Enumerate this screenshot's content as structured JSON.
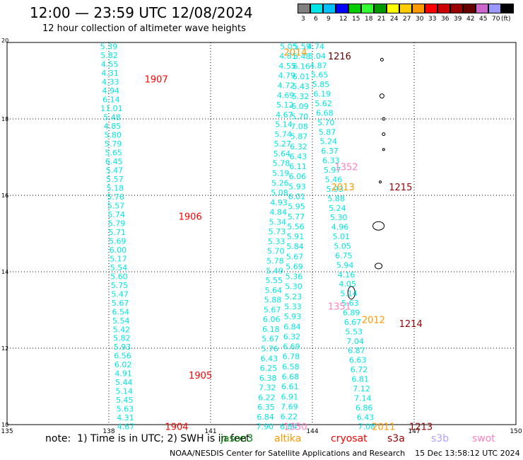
{
  "title": "12:00 — 23:59 UTC 12/08/2024",
  "subtitle": "12 hour collection of altimeter wave heights",
  "legend": {
    "colors": [
      "#808080",
      "#00e5e5",
      "#00bfff",
      "#0000ff",
      "#00cc00",
      "#33ff33",
      "#009900",
      "#ffff00",
      "#ffcc00",
      "#ff9900",
      "#ff0000",
      "#cc0000",
      "#990000",
      "#660000",
      "#cc66cc",
      "#9999ff",
      "#000000"
    ],
    "labels": [
      "3",
      "6",
      "9",
      "12",
      "15",
      "18",
      "21",
      "24",
      "27",
      "30",
      "33",
      "36",
      "39",
      "42",
      "45",
      "70",
      "(ft)"
    ]
  },
  "map_axes": {
    "lon_ticks": [
      "135",
      "138",
      "141",
      "144",
      "147",
      "150"
    ],
    "lat_ticks": [
      "20",
      "18",
      "16",
      "14",
      "12",
      "10"
    ],
    "lon_range": [
      135,
      150
    ],
    "lat_range": [
      10,
      20
    ]
  },
  "tracks": [
    {
      "satellite": "jason3",
      "color": "#00e5e5",
      "lon_start": 138.0,
      "lon_end": 138.5,
      "values": [
        "5.39",
        "5.82",
        "4.55",
        "4.31",
        "4.33",
        "4.94",
        "6.14",
        "11.01",
        "5.48",
        "4.85",
        "5.80",
        "5.79",
        "5.65",
        "6.45",
        "5.47",
        "5.57",
        "5.18",
        "5.76",
        "5.57",
        "5.74",
        "5.79",
        "5.71",
        "5.69",
        "6.00",
        "5.17",
        "5.54",
        "5.60",
        "5.75",
        "5.47",
        "5.67",
        "6.54",
        "5.54",
        "5.42",
        "5.82",
        "5.93",
        "6.56",
        "6.02",
        "4.91",
        "5.44",
        "5.14",
        "5.45",
        "5.63",
        "4.31",
        "4.67"
      ]
    },
    {
      "satellite": "jason3",
      "color": "#00e5e5",
      "lon_start": 143.3,
      "lon_end": 142.6,
      "values": [
        "5.05",
        "4.81",
        "4.55",
        "4.79",
        "4.72",
        "4.69",
        "5.12",
        "4.67",
        "5.14",
        "5.74",
        "5.27",
        "5.64",
        "5.78",
        "5.19",
        "5.26",
        "5.08",
        "4.93",
        "4.84",
        "5.34",
        "5.73",
        "5.33",
        "5.70",
        "5.78",
        "5.49",
        "5.55",
        "5.64",
        "5.88",
        "5.67",
        "6.06",
        "6.18",
        "5.67",
        "5.76",
        "6.43",
        "6.25",
        "6.38",
        "7.32",
        "6.22",
        "6.35",
        "6.84",
        "7.90"
      ]
    },
    {
      "satellite": "jason3",
      "color": "#00e5e5",
      "lon_start": 143.7,
      "lon_end": 143.3,
      "values": [
        "5.59",
        "5.48",
        "6.16",
        "6.01",
        "5.43",
        "5.32",
        "6.09",
        "5.70",
        "7.08",
        "5.87",
        "6.32",
        "6.43",
        "6.11",
        "6.06",
        "5.93",
        "6.01",
        "5.95",
        "5.77",
        "5.56",
        "5.91",
        "5.84",
        "5.67",
        "5.69",
        "5.36",
        "5.30",
        "5.23",
        "5.33",
        "5.93",
        "6.84",
        "6.32",
        "6.69",
        "6.78",
        "6.58",
        "6.68",
        "6.61",
        "6.91",
        "7.69",
        "6.22",
        "6.84"
      ]
    },
    {
      "satellite": "jason3",
      "color": "#00e5e5",
      "lon_start": 144.1,
      "lon_end": 145.6,
      "values": [
        "4.74",
        "5.04",
        "4.87",
        "5.65",
        "5.85",
        "6.19",
        "5.62",
        "6.68",
        "5.70",
        "5.87",
        "5.24",
        "6.37",
        "6.33",
        "5.97",
        "5.46",
        "5.93",
        "5.88",
        "5.24",
        "5.30",
        "4.96",
        "5.01",
        "5.05",
        "6.75",
        "5.94",
        "4.16",
        "4.05",
        "5.14",
        "5.63",
        "6.89",
        "6.67",
        "5.53",
        "7.04",
        "6.87",
        "6.63",
        "6.72",
        "6.81",
        "7.12",
        "7.14",
        "6.86",
        "6.43",
        "7.08"
      ]
    }
  ],
  "pass_labels": [
    {
      "text": "2014",
      "color": "#ff9900",
      "lon": 143.5,
      "lat": 19.75
    },
    {
      "text": "1216",
      "color": "#660000",
      "lon": 144.8,
      "lat": 19.65
    },
    {
      "text": "1907",
      "color": "#ff0000",
      "lon": 139.4,
      "lat": 19.05
    },
    {
      "text": "1352",
      "color": "#ff80c0",
      "lon": 145.0,
      "lat": 16.75
    },
    {
      "text": "2013",
      "color": "#ff9900",
      "lon": 144.9,
      "lat": 16.22
    },
    {
      "text": "1215",
      "color": "#990000",
      "lon": 146.6,
      "lat": 16.22
    },
    {
      "text": "1906",
      "color": "#ff0000",
      "lon": 140.4,
      "lat": 15.45
    },
    {
      "text": "1351",
      "color": "#ff80c0",
      "lon": 144.8,
      "lat": 13.1
    },
    {
      "text": "2012",
      "color": "#ff9900",
      "lon": 145.8,
      "lat": 12.75
    },
    {
      "text": "1214",
      "color": "#990000",
      "lon": 146.9,
      "lat": 12.65
    },
    {
      "text": "1905",
      "color": "#ff0000",
      "lon": 140.7,
      "lat": 11.3
    },
    {
      "text": "1904",
      "color": "#ff0000",
      "lon": 140.0,
      "lat": 9.95
    },
    {
      "text": "1350",
      "color": "#ff80c0",
      "lon": 143.5,
      "lat": 9.95
    },
    {
      "text": "2011",
      "color": "#ff9900",
      "lon": 146.1,
      "lat": 9.95
    },
    {
      "text": "1213",
      "color": "#990000",
      "lon": 147.2,
      "lat": 9.95
    }
  ],
  "footer": {
    "note": "note:  1) Time is in UTC; 2) SWH is in feet",
    "credit": "NOAA/NESDIS Center for Satellite Applications and Research    15 Dec 13:58:12 UTC 2024",
    "satellites": [
      {
        "name": "jason3",
        "color": "#008000"
      },
      {
        "name": "altika",
        "color": "#ff9900"
      },
      {
        "name": "cryosat",
        "color": "#ff0000"
      },
      {
        "name": "s3a",
        "color": "#990000"
      },
      {
        "name": "s3b",
        "color": "#b0a0ff"
      },
      {
        "name": "swot",
        "color": "#ff80c0"
      }
    ]
  }
}
